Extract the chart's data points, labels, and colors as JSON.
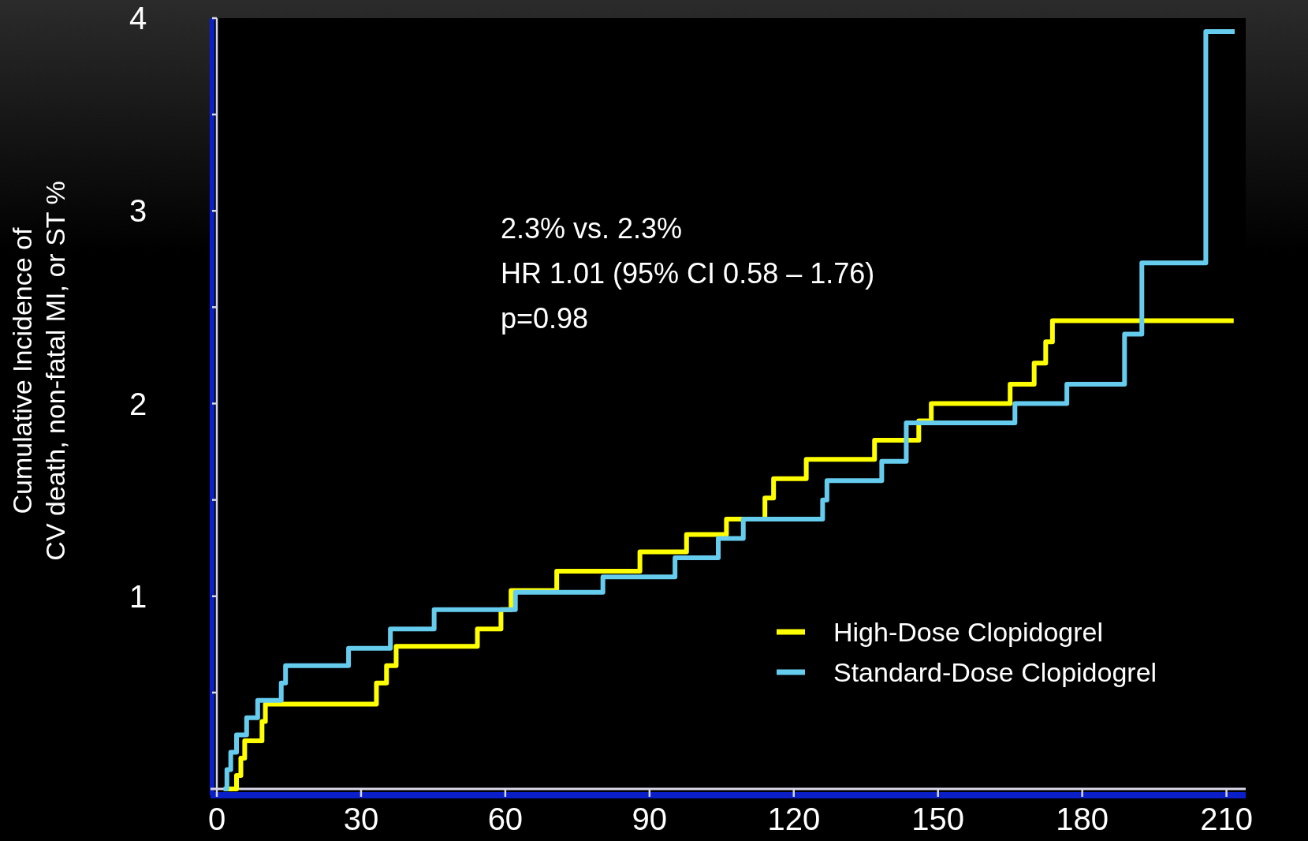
{
  "chart_data": {
    "type": "step",
    "ylabel": "Cumulative Incidence of\nCV death, non-fatal MI, or ST %",
    "annotations": [
      "2.3% vs. 2.3%",
      "HR 1.01 (95% CI 0.58 – 1.76)",
      "p=0.98"
    ],
    "xlim": [
      0,
      214
    ],
    "xticks": [
      0,
      30,
      60,
      90,
      120,
      150,
      180,
      210
    ],
    "ylim": [
      0,
      4
    ],
    "yticks": [
      {
        "value": 0.5,
        "label": null
      },
      1,
      {
        "value": 1.5,
        "label": null
      },
      2,
      {
        "value": 2.5,
        "label": null
      },
      3,
      {
        "value": 3.5,
        "label": null
      },
      4
    ],
    "legend": "bottom right",
    "grid": false,
    "marker": "none",
    "line_style": "solid",
    "series": [
      {
        "name": "High-Dose Clopidogrel",
        "color": "#ffff00",
        "x": [
          2,
          4.1,
          5.0,
          5.8,
          9.4,
          10.1,
          33.2,
          35.3,
          37.3,
          54.2,
          59.1,
          61.2,
          70.7,
          88,
          97.7,
          106,
          114,
          115.8,
          122.6,
          136.8,
          146,
          148.6,
          165,
          170,
          172.4,
          173.8,
          211.5
        ],
        "values": [
          0,
          0.07,
          0.16,
          0.25,
          0.35,
          0.44,
          0.55,
          0.64,
          0.74,
          0.83,
          0.93,
          1.03,
          1.13,
          1.23,
          1.32,
          1.4,
          1.51,
          1.61,
          1.71,
          1.81,
          1.91,
          2.0,
          2.1,
          2.21,
          2.32,
          2.43,
          2.43
        ]
      },
      {
        "name": "Standard-Dose Clopidogrel",
        "color": "#66ccee",
        "x": [
          1.4,
          2.1,
          2.9,
          4.1,
          6.2,
          8.5,
          13.4,
          14.3,
          27.4,
          36.1,
          45.2,
          62.1,
          80.3,
          95.3,
          104.3,
          109.5,
          126,
          126.9,
          138.3,
          143.4,
          166,
          176.8,
          188.8,
          192.4,
          205.7,
          211.7
        ],
        "values": [
          0,
          0.1,
          0.19,
          0.28,
          0.37,
          0.46,
          0.55,
          0.64,
          0.73,
          0.83,
          0.93,
          1.02,
          1.1,
          1.2,
          1.3,
          1.4,
          1.5,
          1.6,
          1.7,
          1.9,
          2.0,
          2.1,
          2.36,
          2.73,
          3.93,
          3.93
        ]
      }
    ]
  }
}
